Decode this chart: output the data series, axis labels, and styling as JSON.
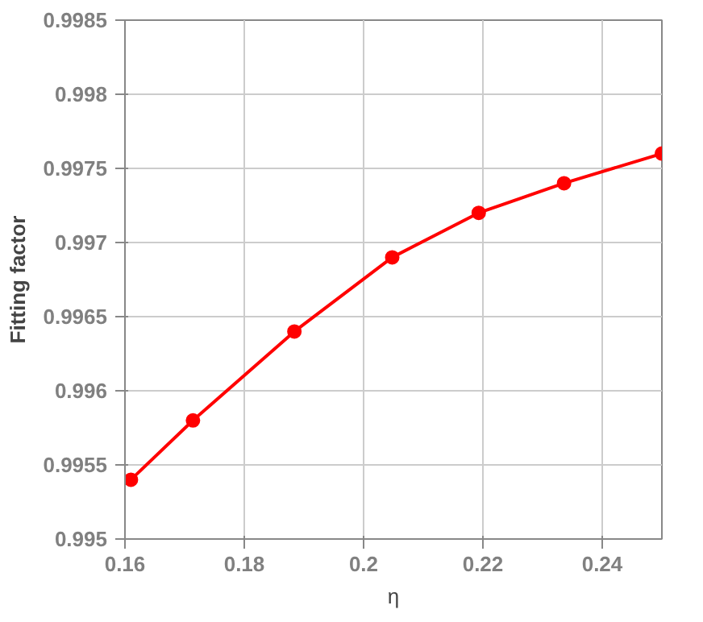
{
  "chart_data": {
    "type": "line",
    "xlabel": "η",
    "ylabel": "Fitting factor",
    "x": [
      0.161,
      0.1714,
      0.1884,
      0.2048,
      0.2193,
      0.2336,
      0.25
    ],
    "series": [
      {
        "color": "#ff0000",
        "values": [
          0.9954,
          0.9958,
          0.9964,
          0.9969,
          0.9972,
          0.9974,
          0.9976
        ]
      }
    ],
    "xlim": [
      0.16,
      0.25
    ],
    "xticks": [
      {
        "value": 0.16,
        "label": "0.16"
      },
      {
        "value": 0.18,
        "label": "0.18"
      },
      {
        "value": 0.2,
        "label": "0.2"
      },
      {
        "value": 0.22,
        "label": "0.22"
      },
      {
        "value": 0.24,
        "label": "0.24"
      }
    ],
    "ylim": [
      0.995,
      0.9985
    ],
    "yticks": [
      {
        "value": 0.995,
        "label": "0.995"
      },
      {
        "value": 0.9955,
        "label": "0.9955"
      },
      {
        "value": 0.996,
        "label": "0.996"
      },
      {
        "value": 0.9965,
        "label": "0.9965"
      },
      {
        "value": 0.997,
        "label": "0.997"
      },
      {
        "value": 0.9975,
        "label": "0.9975"
      },
      {
        "value": 0.998,
        "label": "0.998"
      },
      {
        "value": 0.9985,
        "label": "0.9985"
      }
    ],
    "grid": true,
    "marker": "circle",
    "line_style": "solid"
  }
}
